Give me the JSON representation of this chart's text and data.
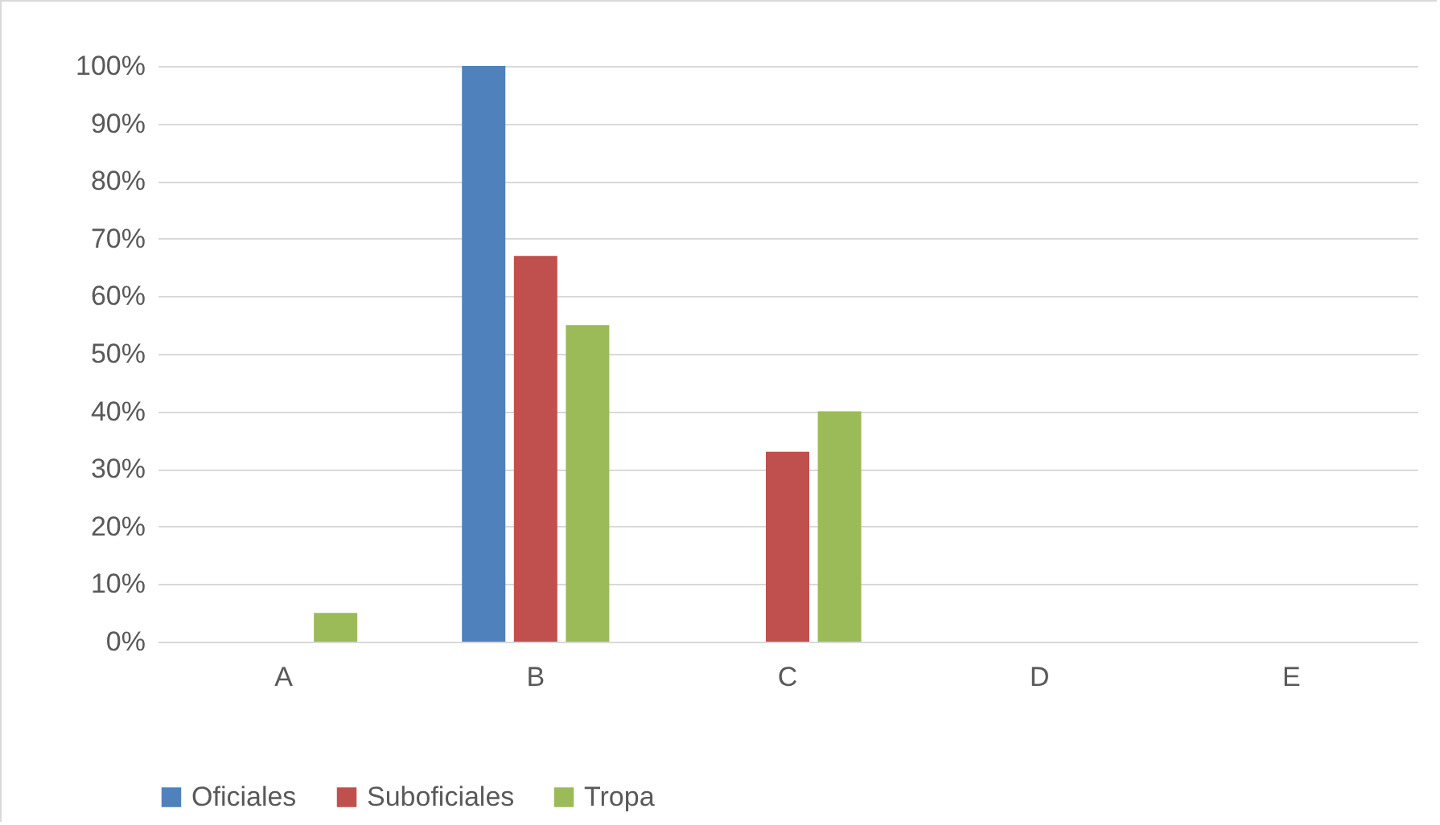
{
  "chart_data": {
    "type": "bar",
    "categories": [
      "A",
      "B",
      "C",
      "D",
      "E"
    ],
    "series": [
      {
        "name": "Oficiales",
        "color": "#4f81bd",
        "values": [
          0,
          100,
          0,
          0,
          0
        ]
      },
      {
        "name": "Suboficiales",
        "color": "#c0504d",
        "values": [
          0,
          67,
          33,
          0,
          0
        ]
      },
      {
        "name": "Tropa",
        "color": "#9bbb59",
        "values": [
          5,
          55,
          40,
          0,
          0
        ]
      }
    ],
    "ylim": [
      0,
      100
    ],
    "yticks": [
      {
        "value": 0,
        "label": "0%"
      },
      {
        "value": 10,
        "label": "10%"
      },
      {
        "value": 20,
        "label": "20%"
      },
      {
        "value": 30,
        "label": "30%"
      },
      {
        "value": 40,
        "label": "40%"
      },
      {
        "value": 50,
        "label": "50%"
      },
      {
        "value": 60,
        "label": "60%"
      },
      {
        "value": 70,
        "label": "70%"
      },
      {
        "value": 80,
        "label": "80%"
      },
      {
        "value": 90,
        "label": "90%"
      },
      {
        "value": 100,
        "label": "100%"
      }
    ],
    "grid": "y",
    "legend": "bottom"
  }
}
